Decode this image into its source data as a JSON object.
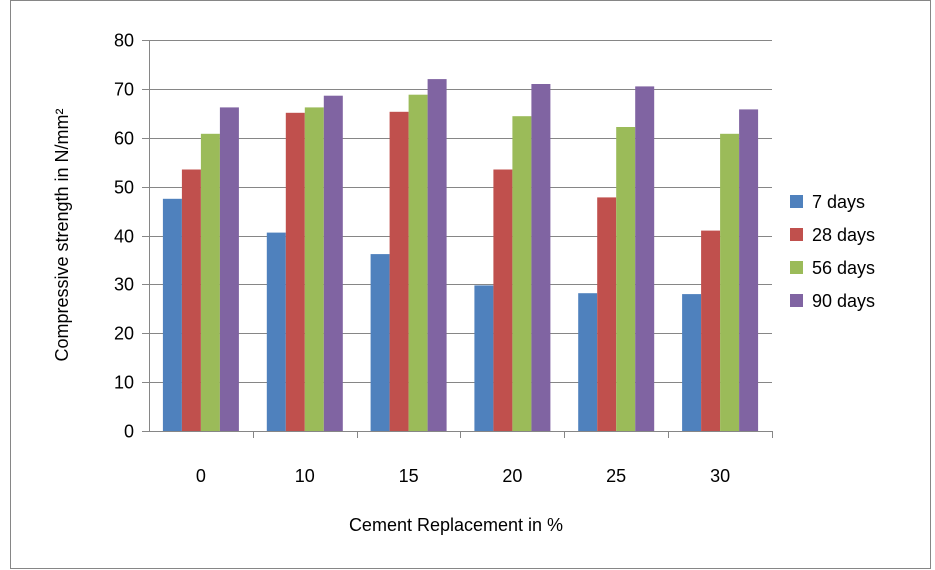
{
  "chart_data": {
    "type": "bar",
    "title": "",
    "xlabel": "Cement Replacement in %",
    "ylabel": "Compressive strength in N/mm²",
    "categories": [
      "0",
      "10",
      "15",
      "20",
      "25",
      "30"
    ],
    "ylim": [
      0,
      80
    ],
    "yticks": [
      0,
      10,
      20,
      30,
      40,
      50,
      60,
      70,
      80
    ],
    "grid": true,
    "legend_position": "right",
    "series": [
      {
        "name": "7 days",
        "color": "#4F81BD",
        "values": [
          47.5,
          40.6,
          36.2,
          29.8,
          28.2,
          28.0
        ]
      },
      {
        "name": "28 days",
        "color": "#C0504D",
        "values": [
          53.5,
          65.1,
          65.3,
          53.5,
          47.8,
          41.0
        ]
      },
      {
        "name": "56 days",
        "color": "#9BBB59",
        "values": [
          60.8,
          66.2,
          68.8,
          64.4,
          62.2,
          60.8
        ]
      },
      {
        "name": "90 days",
        "color": "#8064A2",
        "values": [
          66.2,
          68.6,
          72.0,
          71.0,
          70.5,
          65.8
        ]
      }
    ]
  }
}
